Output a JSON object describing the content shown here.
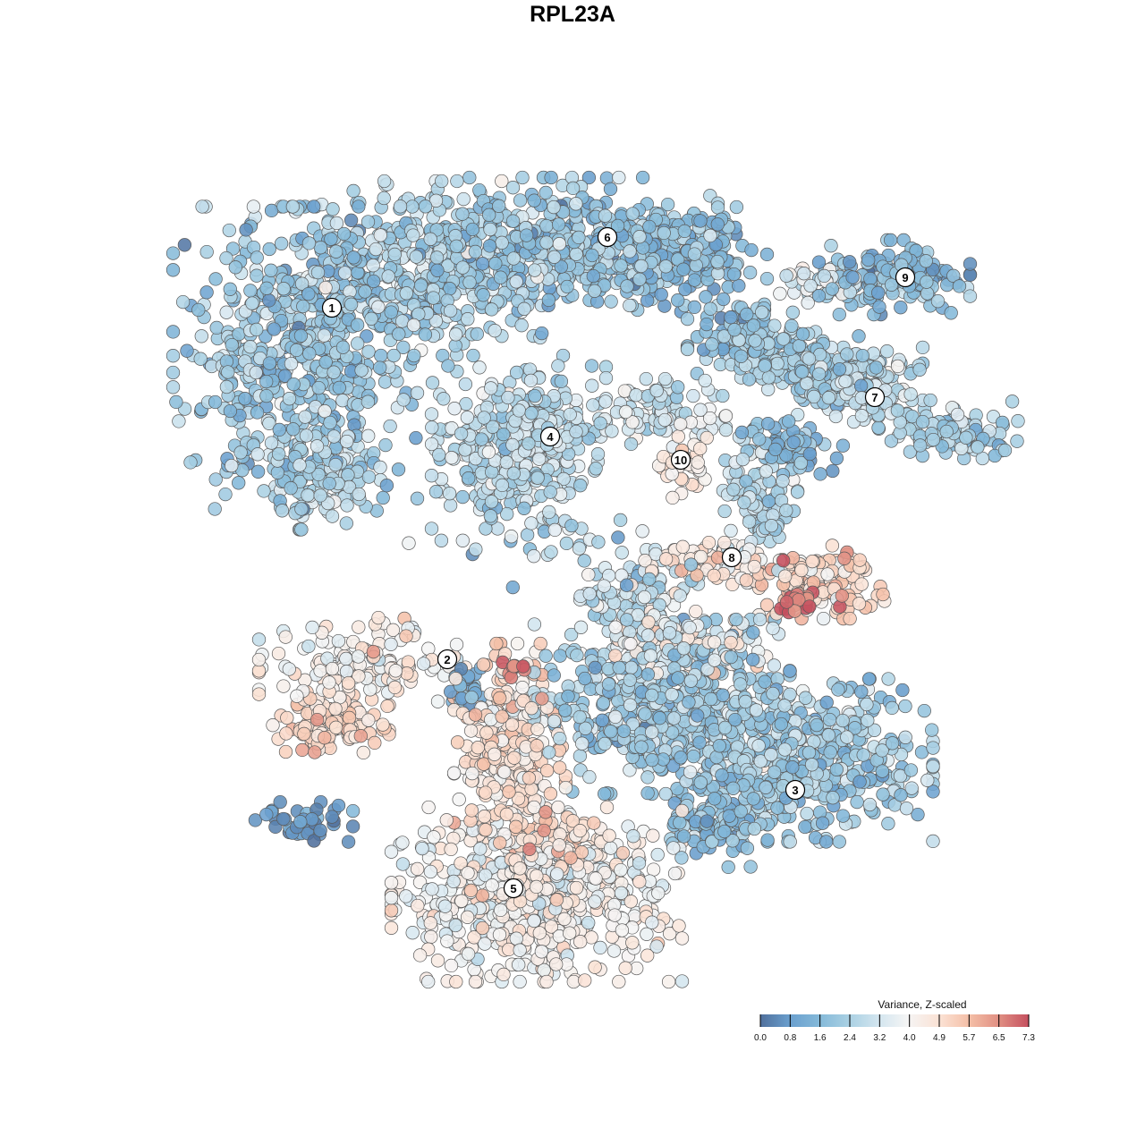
{
  "chart_data": {
    "type": "scatter",
    "title": "RPL23A",
    "xlabel": "",
    "ylabel": "",
    "xlim": [
      -45,
      52
    ],
    "ylim": [
      -47,
      47
    ],
    "grid": false,
    "axes_visible": false,
    "color_scale": {
      "title": "Variance, Z-scaled",
      "placement": "bottom-right",
      "ticks": [
        0.0,
        0.8,
        1.6,
        2.4,
        3.2,
        4.0,
        4.9,
        5.7,
        6.5,
        7.3
      ],
      "tick_labels": [
        "0.0",
        "0.8",
        "1.6",
        "2.4",
        "3.2",
        "4.0",
        "4.9",
        "5.7",
        "6.5",
        "7.3"
      ],
      "colors": [
        "#50709c",
        "#6a9fce",
        "#84b9d9",
        "#a9d0e3",
        "#d2e5ef",
        "#f5f5f5",
        "#fbe1d3",
        "#f4bea6",
        "#e08e82",
        "#c5505f"
      ],
      "range": [
        0.0,
        7.3
      ]
    },
    "cluster_labels": [
      {
        "label": "1",
        "x": -26.9,
        "y": 29.6
      },
      {
        "label": "2",
        "x": -14.0,
        "y": -9.7
      },
      {
        "label": "3",
        "x": 24.9,
        "y": -24.3
      },
      {
        "label": "4",
        "x": -2.5,
        "y": 15.2
      },
      {
        "label": "5",
        "x": -6.6,
        "y": -35.3
      },
      {
        "label": "6",
        "x": 3.9,
        "y": 37.5
      },
      {
        "label": "7",
        "x": 33.8,
        "y": 19.6
      },
      {
        "label": "8",
        "x": 17.8,
        "y": 1.7
      },
      {
        "label": "9",
        "x": 37.2,
        "y": 33.0
      },
      {
        "label": "10",
        "x": 12.1,
        "y": 12.6
      }
    ],
    "point_groups_note": "cell groups summarised as (center x, center y, spread x, spread y, cell count, mean value, value sd)",
    "point_groups": [
      {
        "cluster": "1",
        "x": -31,
        "y": 24,
        "sx": 10.5,
        "sy": 13,
        "n": 520,
        "mean": 2.0,
        "sd": 0.7
      },
      {
        "cluster": "1",
        "x": -16,
        "y": 34,
        "sx": 11.5,
        "sy": 7.5,
        "n": 420,
        "mean": 2.3,
        "sd": 0.7
      },
      {
        "cluster": "1",
        "x": -28,
        "y": 10,
        "sx": 5,
        "sy": 4,
        "n": 110,
        "mean": 2.6,
        "sd": 0.6
      },
      {
        "cluster": "6",
        "x": 0,
        "y": 37,
        "sx": 12.5,
        "sy": 5.5,
        "n": 380,
        "mean": 2.0,
        "sd": 0.7
      },
      {
        "cluster": "6",
        "x": 12,
        "y": 35,
        "sx": 7.5,
        "sy": 4.5,
        "n": 160,
        "mean": 1.6,
        "sd": 0.6
      },
      {
        "cluster": "4",
        "x": -6,
        "y": 14,
        "sx": 7.5,
        "sy": 7,
        "n": 360,
        "mean": 2.8,
        "sd": 0.6
      },
      {
        "cluster": "7",
        "x": 20,
        "y": 26,
        "sx": 5.5,
        "sy": 3.5,
        "n": 120,
        "mean": 2.0,
        "sd": 0.6
      },
      {
        "cluster": "7",
        "x": 26,
        "y": 23,
        "sx": 5.5,
        "sy": 3,
        "n": 130,
        "mean": 2.2,
        "sd": 0.6
      },
      {
        "cluster": "7",
        "x": 32,
        "y": 21,
        "sx": 5.5,
        "sy": 3.2,
        "n": 160,
        "mean": 2.8,
        "sd": 0.6
      },
      {
        "cluster": "7",
        "x": 42,
        "y": 16,
        "sx": 6,
        "sy": 2.5,
        "n": 110,
        "mean": 2.4,
        "sd": 0.6
      },
      {
        "cluster": "9",
        "x": 36,
        "y": 33,
        "sx": 6.5,
        "sy": 3.2,
        "n": 160,
        "mean": 1.6,
        "sd": 0.6
      },
      {
        "cluster": "9",
        "x": 27,
        "y": 32.5,
        "sx": 3.5,
        "sy": 1.8,
        "n": 35,
        "mean": 3.5,
        "sd": 0.6
      },
      {
        "cluster": "10",
        "x": 10,
        "y": 18,
        "sx": 5.5,
        "sy": 2.8,
        "n": 90,
        "mean": 3.2,
        "sd": 0.6
      },
      {
        "cluster": "10",
        "x": 12.5,
        "y": 12,
        "sx": 2.2,
        "sy": 2.8,
        "n": 35,
        "mean": 4.6,
        "sd": 0.5
      },
      {
        "cluster": "8",
        "x": 21,
        "y": 8,
        "sx": 3.2,
        "sy": 5.5,
        "n": 90,
        "mean": 2.6,
        "sd": 0.6
      },
      {
        "cluster": "8",
        "x": 24,
        "y": 14,
        "sx": 4.8,
        "sy": 2.3,
        "n": 70,
        "mean": 1.5,
        "sd": 0.6
      },
      {
        "cluster": "8",
        "x": 16,
        "y": 1,
        "sx": 5.5,
        "sy": 1.8,
        "n": 70,
        "mean": 4.5,
        "sd": 0.6
      },
      {
        "cluster": "8",
        "x": 28,
        "y": -1,
        "sx": 5.5,
        "sy": 3.2,
        "n": 140,
        "mean": 5.2,
        "sd": 0.6
      },
      {
        "cluster": "8",
        "x": 25.3,
        "y": -3.5,
        "sx": 1.6,
        "sy": 1.6,
        "n": 16,
        "mean": 6.9,
        "sd": 0.3
      },
      {
        "cluster": "2",
        "x": -24,
        "y": -10,
        "sx": 8.5,
        "sy": 3.8,
        "n": 150,
        "mean": 4.2,
        "sd": 0.6
      },
      {
        "cluster": "2",
        "x": -27,
        "y": -17,
        "sx": 5,
        "sy": 2.8,
        "n": 110,
        "mean": 5.1,
        "sd": 0.5
      },
      {
        "cluster": "2",
        "x": -12,
        "y": -13,
        "sx": 1.8,
        "sy": 1.8,
        "n": 25,
        "mean": 1.2,
        "sd": 0.5
      },
      {
        "cluster": "3",
        "x": 10,
        "y": -15,
        "sx": 11,
        "sy": 7.5,
        "n": 520,
        "mean": 2.2,
        "sd": 0.7
      },
      {
        "cluster": "3",
        "x": 26,
        "y": -21,
        "sx": 11,
        "sy": 7,
        "n": 470,
        "mean": 2.2,
        "sd": 0.7
      },
      {
        "cluster": "3",
        "x": 16,
        "y": -28,
        "sx": 4.5,
        "sy": 3.8,
        "n": 110,
        "mean": 1.8,
        "sd": 0.6
      },
      {
        "cluster": "3",
        "x": 8,
        "y": -2,
        "sx": 5.5,
        "sy": 3.5,
        "n": 110,
        "mean": 3.0,
        "sd": 0.7
      },
      {
        "cluster": "3",
        "x": 12,
        "y": -8,
        "sx": 8.5,
        "sy": 2.8,
        "n": 150,
        "mean": 3.8,
        "sd": 0.7
      },
      {
        "cluster": "5",
        "x": -7,
        "y": -19,
        "sx": 4.8,
        "sy": 8.5,
        "n": 260,
        "mean": 4.8,
        "sd": 0.6
      },
      {
        "cluster": "5",
        "x": -6,
        "y": -11,
        "sx": 1.4,
        "sy": 1,
        "n": 10,
        "mean": 6.9,
        "sd": 0.3
      },
      {
        "cluster": "5",
        "x": -4,
        "y": -36,
        "sx": 12.5,
        "sy": 7.5,
        "n": 620,
        "mean": 4.1,
        "sd": 0.6
      },
      {
        "cluster": "5",
        "x": -3,
        "y": -30,
        "sx": 4.8,
        "sy": 2.8,
        "n": 80,
        "mean": 5.2,
        "sd": 0.6
      },
      {
        "cluster": "other",
        "x": -30,
        "y": -28,
        "sx": 4.2,
        "sy": 1.8,
        "n": 40,
        "mean": 0.7,
        "sd": 0.4
      },
      {
        "cluster": "other",
        "x": -4,
        "y": 4,
        "sx": 11,
        "sy": 4.5,
        "n": 30,
        "mean": 2.2,
        "sd": 0.8
      }
    ]
  }
}
